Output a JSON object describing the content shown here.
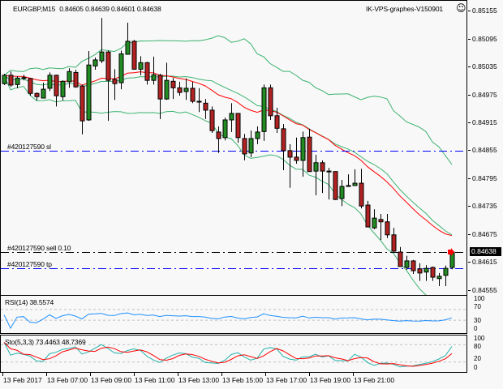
{
  "header": {
    "symbol": "EURGBP,M15",
    "ohlc_text": "0.84605 0.84639 0.84601 0.84638",
    "server": "IK-VPS-graphes-V150901",
    "smiley_icon": "smiley-face-icon"
  },
  "orders": [
    {
      "label": "#420127590 sl",
      "price": 0.84855,
      "color": "#0000ff"
    },
    {
      "label": "#420127590 sell 0.10",
      "price": 0.84638,
      "color": "#000000"
    },
    {
      "label": "#420127590 tp",
      "price": 0.84604,
      "color": "#0000ff"
    }
  ],
  "price_axis": {
    "ticks": [
      "0.85155",
      "0.85095",
      "0.85035",
      "0.84975",
      "0.84915",
      "0.84855",
      "0.84795",
      "0.84735",
      "0.84675",
      "0.84615",
      "0.84555"
    ],
    "current_price": "0.84638"
  },
  "time_axis": {
    "labels": [
      "13 Feb 2017",
      "13 Feb 07:00",
      "13 Feb 09:00",
      "13 Feb 11:00",
      "13 Feb 13:00",
      "13 Feb 15:00",
      "13 Feb 17:00",
      "13 Feb 19:00",
      "13 Feb 21:00"
    ]
  },
  "rsi": {
    "label": "RSI(14) 38.5574",
    "levels_text": [
      "100",
      "70",
      "30",
      "0"
    ],
    "levels": [
      70,
      30
    ],
    "color": "#1e90ff"
  },
  "stochastic": {
    "label": "Sto(5,3,3) 73.4463 48.7369",
    "levels_text": [
      "100",
      "80",
      "20",
      "0"
    ],
    "levels": [
      80,
      20
    ],
    "main_color": "#20b2aa",
    "signal_color": "#ff0000"
  },
  "colors": {
    "bull": "#228b22",
    "bear": "#b22222",
    "bands": "#3cb371",
    "ma": "#ff0000",
    "background": "#f8f8f8"
  },
  "chart_data": [
    {
      "type": "candlestick",
      "title": "EURGBP,M15",
      "ylim": [
        0.84544,
        0.85178
      ],
      "grid": false,
      "overlays": [
        "Bollinger Bands",
        "Moving Average"
      ],
      "ohlc": [
        [
          0.85,
          0.85021,
          0.84997,
          0.85018
        ],
        [
          0.85018,
          0.85026,
          0.84993,
          0.84997
        ],
        [
          0.84998,
          0.85016,
          0.8499,
          0.85012
        ],
        [
          0.85012,
          0.85019,
          0.85007,
          0.85013
        ],
        [
          0.85011,
          0.85012,
          0.84974,
          0.84979
        ],
        [
          0.84979,
          0.84981,
          0.84964,
          0.84972
        ],
        [
          0.84969,
          0.85002,
          0.84969,
          0.84988
        ],
        [
          0.8499,
          0.85024,
          0.84984,
          0.85018
        ],
        [
          0.85018,
          0.85019,
          0.84951,
          0.84974
        ],
        [
          0.84972,
          0.85007,
          0.84964,
          0.85005
        ],
        [
          0.85004,
          0.85033,
          0.84991,
          0.85026
        ],
        [
          0.85024,
          0.8503,
          0.84991,
          0.84993
        ],
        [
          0.84995,
          0.84998,
          0.84891,
          0.8492
        ],
        [
          0.84922,
          0.8507,
          0.8492,
          0.8504
        ],
        [
          0.85038,
          0.85056,
          0.8503,
          0.85051
        ],
        [
          0.85049,
          0.85141,
          0.85044,
          0.85068
        ],
        [
          0.85068,
          0.85071,
          0.8492,
          0.85007
        ],
        [
          0.85009,
          0.85031,
          0.84965,
          0.85
        ],
        [
          0.85002,
          0.85071,
          0.84988,
          0.85064
        ],
        [
          0.85063,
          0.85131,
          0.85063,
          0.85091
        ],
        [
          0.85091,
          0.85094,
          0.8503,
          0.85031
        ],
        [
          0.85031,
          0.85059,
          0.85018,
          0.85045
        ],
        [
          0.85045,
          0.85047,
          0.84998,
          0.85007
        ],
        [
          0.85007,
          0.85058,
          0.84998,
          0.85019
        ],
        [
          0.85018,
          0.85021,
          0.84924,
          0.84967
        ],
        [
          0.84967,
          0.85045,
          0.84965,
          0.85007
        ],
        [
          0.85005,
          0.85012,
          0.84967,
          0.84991
        ],
        [
          0.84991,
          0.85004,
          0.84974,
          0.84981
        ],
        [
          0.84983,
          0.85011,
          0.84965,
          0.8499
        ],
        [
          0.8499,
          0.85004,
          0.84958,
          0.84962
        ],
        [
          0.84962,
          0.8499,
          0.84939,
          0.84962
        ],
        [
          0.84958,
          0.84967,
          0.84924,
          0.84943
        ],
        [
          0.84943,
          0.84951,
          0.84894,
          0.84899
        ],
        [
          0.84896,
          0.84908,
          0.84851,
          0.84882
        ],
        [
          0.84884,
          0.84927,
          0.84878,
          0.84922
        ],
        [
          0.84922,
          0.84958,
          0.84896,
          0.84936
        ],
        [
          0.84936,
          0.84936,
          0.84873,
          0.84884
        ],
        [
          0.84882,
          0.84892,
          0.84835,
          0.84849
        ],
        [
          0.84851,
          0.84899,
          0.84842,
          0.84882
        ],
        [
          0.84882,
          0.84908,
          0.8487,
          0.84896
        ],
        [
          0.84897,
          0.84998,
          0.84877,
          0.84991
        ],
        [
          0.84991,
          0.84998,
          0.84922,
          0.84931
        ],
        [
          0.84931,
          0.84948,
          0.84894,
          0.84904
        ],
        [
          0.84903,
          0.84913,
          0.84814,
          0.84856
        ],
        [
          0.84856,
          0.8487,
          0.84776,
          0.84842
        ],
        [
          0.84842,
          0.84884,
          0.84828,
          0.84835
        ],
        [
          0.84835,
          0.84897,
          0.848,
          0.84884
        ],
        [
          0.84885,
          0.84903,
          0.84811,
          0.84811
        ],
        [
          0.84812,
          0.84847,
          0.8476,
          0.8483
        ],
        [
          0.8483,
          0.84835,
          0.84765,
          0.84812
        ],
        [
          0.84812,
          0.84819,
          0.84751,
          0.84812
        ],
        [
          0.84811,
          0.84811,
          0.8475,
          0.84751
        ],
        [
          0.84753,
          0.84793,
          0.84737,
          0.84779
        ],
        [
          0.84779,
          0.84805,
          0.84779,
          0.84781
        ],
        [
          0.84781,
          0.84816,
          0.84781,
          0.84786
        ],
        [
          0.84786,
          0.84817,
          0.84732,
          0.84737
        ],
        [
          0.84739,
          0.84748,
          0.84692,
          0.84692
        ],
        [
          0.8469,
          0.8473,
          0.84687,
          0.84711
        ],
        [
          0.84708,
          0.8472,
          0.84664,
          0.84703
        ],
        [
          0.84703,
          0.8472,
          0.84668,
          0.84675
        ],
        [
          0.84675,
          0.8469,
          0.84638,
          0.8464
        ],
        [
          0.84638,
          0.84649,
          0.84607,
          0.84607
        ],
        [
          0.84605,
          0.8463,
          0.846,
          0.84619
        ],
        [
          0.84619,
          0.84621,
          0.84591,
          0.84598
        ],
        [
          0.84602,
          0.84614,
          0.84576,
          0.84593
        ],
        [
          0.84595,
          0.8461,
          0.84576,
          0.84603
        ],
        [
          0.84605,
          0.84607,
          0.84576,
          0.84584
        ],
        [
          0.84581,
          0.84593,
          0.84565,
          0.84586
        ],
        [
          0.84588,
          0.84609,
          0.84565,
          0.84603
        ],
        [
          0.84605,
          0.84639,
          0.84601,
          0.84638
        ]
      ]
    },
    {
      "type": "line",
      "title": "RSI(14) 38.5574",
      "ylim": [
        0,
        100
      ],
      "levels": [
        70,
        30
      ],
      "last_value": 38.5574
    },
    {
      "type": "line",
      "title": "Sto(5,3,3) 73.4463 48.7369",
      "ylim": [
        0,
        100
      ],
      "levels": [
        80,
        20
      ],
      "series": [
        {
          "name": "main",
          "last_value": 73.4463
        },
        {
          "name": "signal",
          "last_value": 48.7369
        }
      ]
    }
  ]
}
